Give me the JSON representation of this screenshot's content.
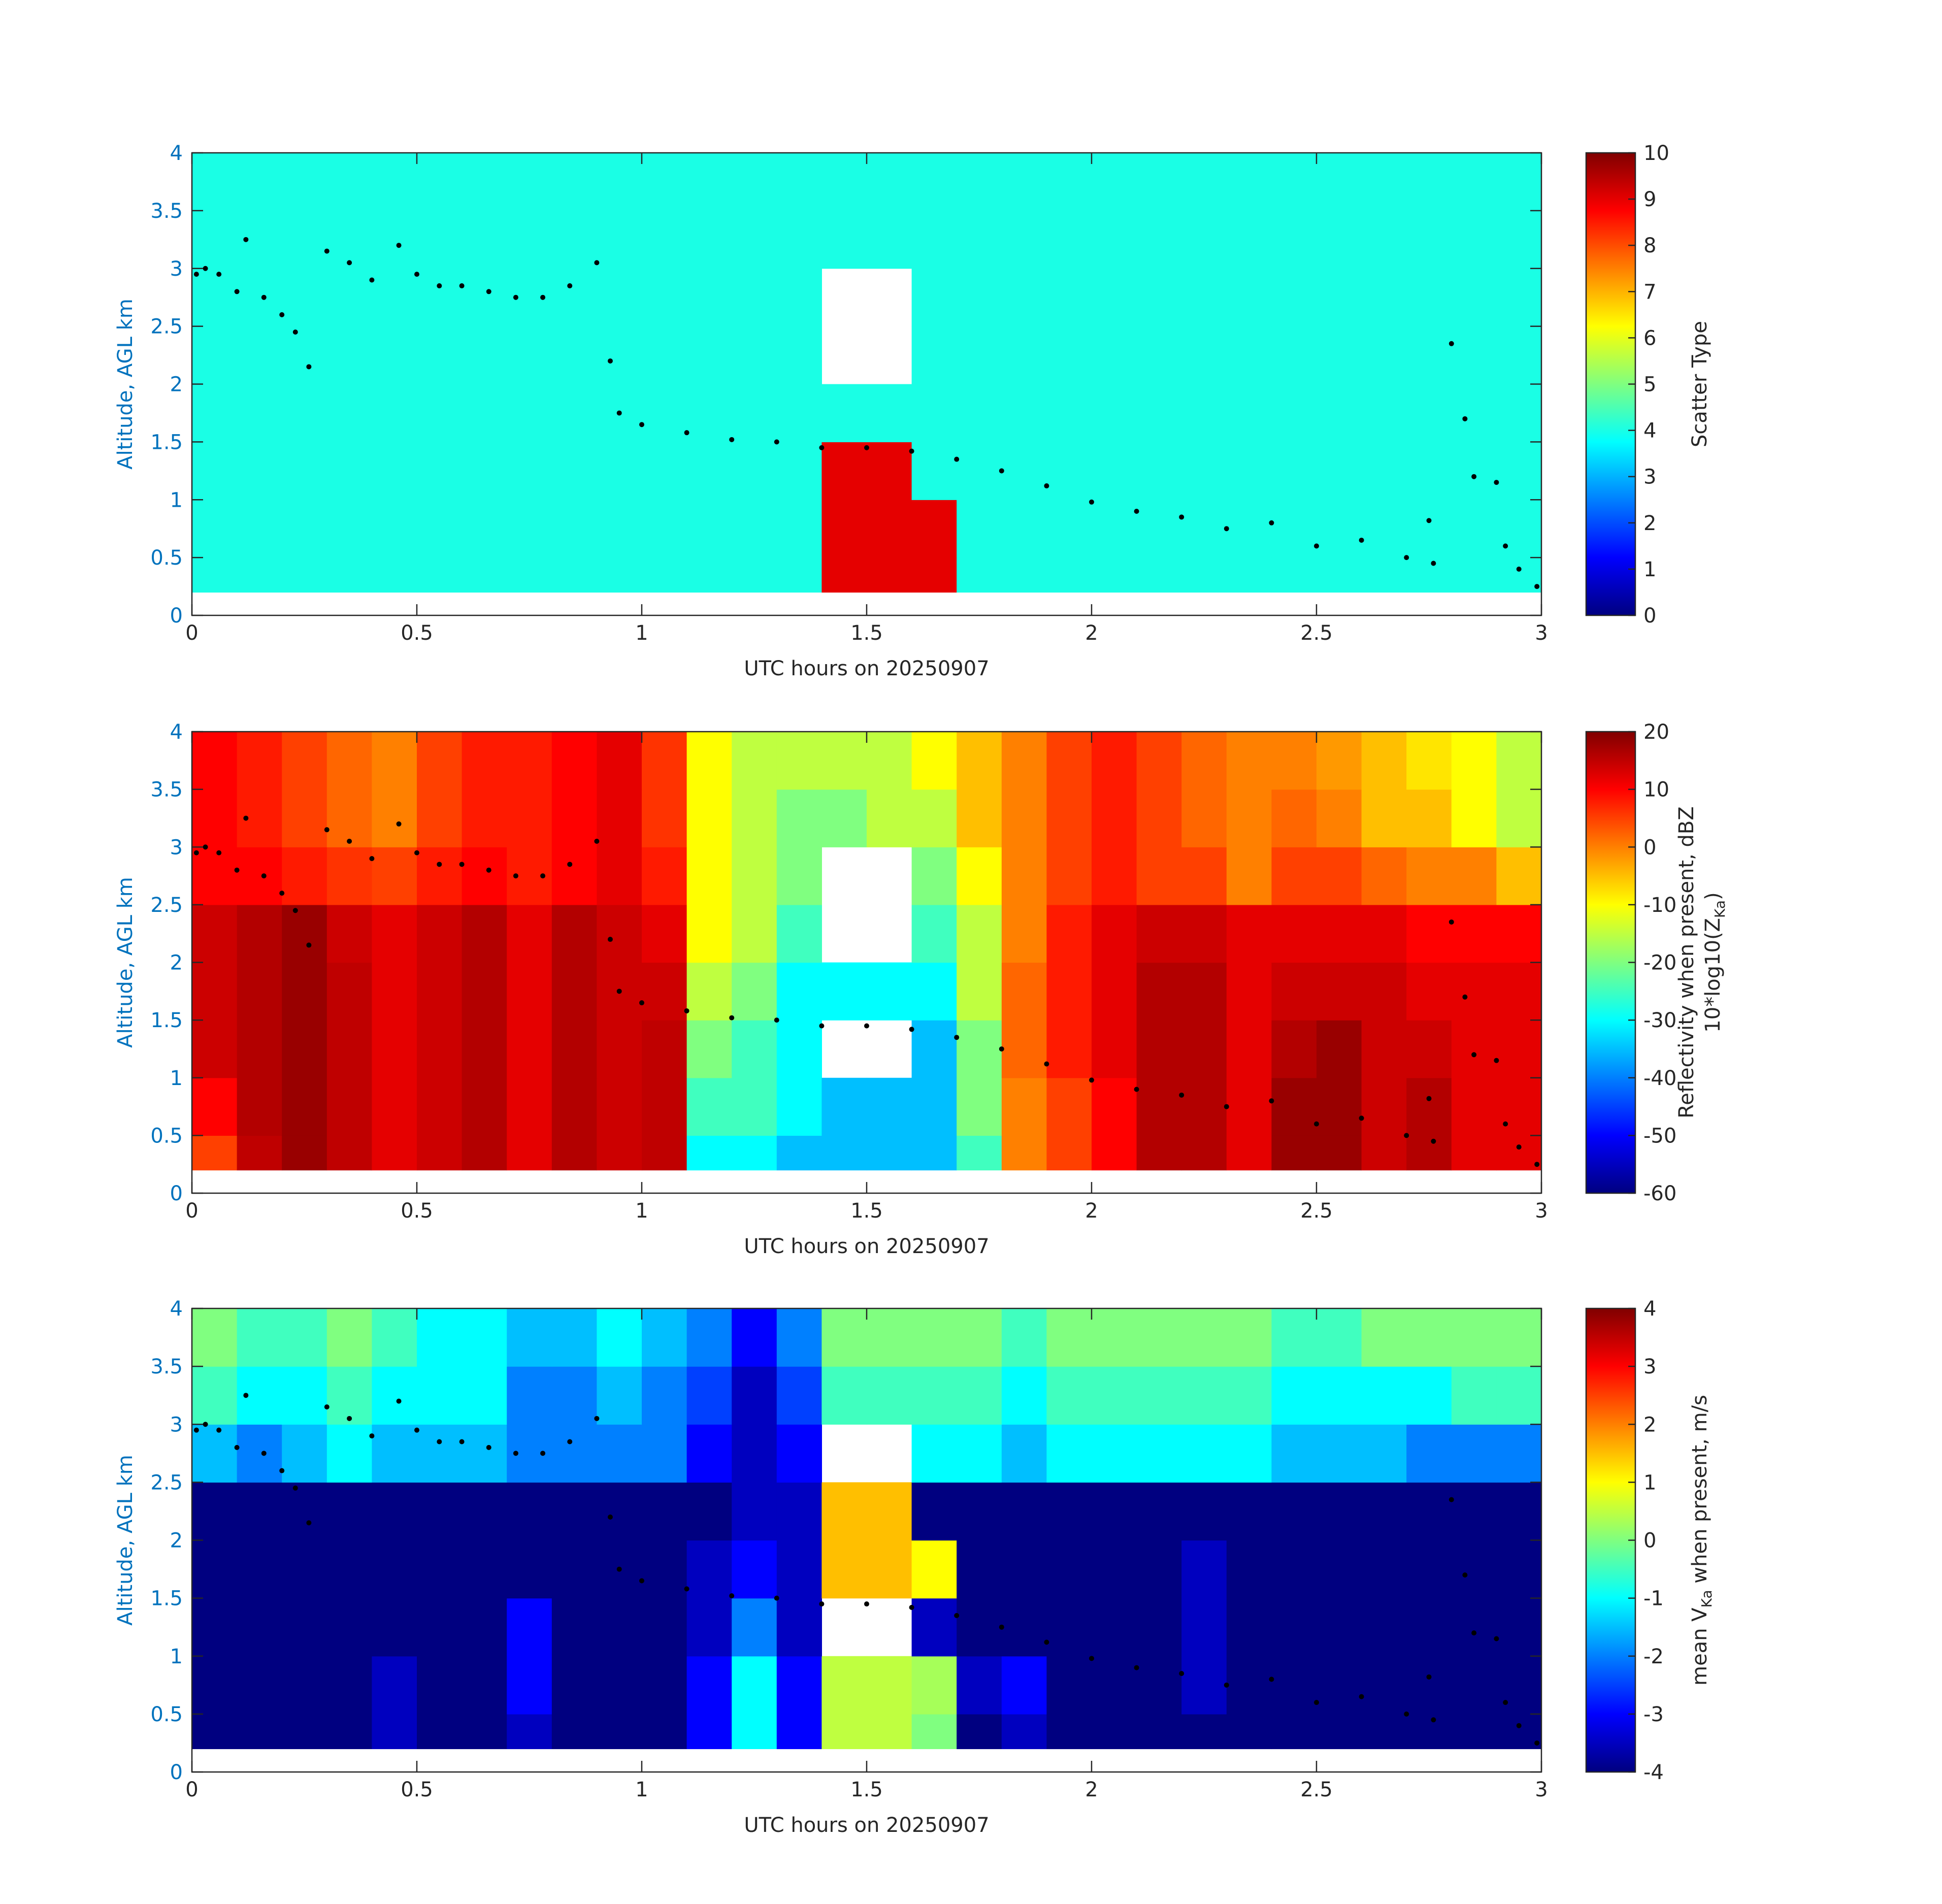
{
  "chart_data": [
    {
      "type": "heatmap",
      "xlabel": "UTC hours on 20250907",
      "ylabel": "Altitude, AGL km",
      "xlim": [
        0,
        3
      ],
      "ylim": [
        0,
        4
      ],
      "xticks": [
        0,
        0.5,
        1,
        1.5,
        2,
        2.5,
        3
      ],
      "yticks": [
        0,
        0.5,
        1,
        1.5,
        2,
        2.5,
        3,
        3.5,
        4
      ],
      "x_edges": [
        0,
        0.1,
        0.2,
        0.3,
        0.4,
        0.5,
        0.6,
        0.7,
        0.8,
        0.9,
        1,
        1.1,
        1.2,
        1.3,
        1.4,
        1.5,
        1.6,
        1.7,
        1.8,
        1.9,
        2,
        2.1,
        2.2,
        2.3,
        2.4,
        2.5,
        2.6,
        2.7,
        2.8,
        2.9,
        3
      ],
      "y_edges": [
        0.2,
        0.5,
        1,
        1.5,
        2,
        2.5,
        3,
        3.5,
        4
      ],
      "clim": [
        0,
        10
      ],
      "cticks": [
        0,
        1,
        2,
        3,
        4,
        5,
        6,
        7,
        8,
        9,
        10
      ],
      "colormap": "jet",
      "clabel": [
        "Scatter Type"
      ],
      "z": [
        [
          4,
          4,
          4,
          4,
          4,
          4,
          4,
          4,
          4,
          4,
          4,
          4,
          4,
          4,
          9,
          9,
          9,
          4,
          4,
          4,
          4,
          4,
          4,
          4,
          4,
          4,
          4,
          4,
          4,
          4
        ],
        [
          4,
          4,
          4,
          4,
          4,
          4,
          4,
          4,
          4,
          4,
          4,
          4,
          4,
          4,
          9,
          9,
          9,
          4,
          4,
          4,
          4,
          4,
          4,
          4,
          4,
          4,
          4,
          4,
          4,
          4
        ],
        [
          4,
          4,
          4,
          4,
          4,
          4,
          4,
          4,
          4,
          4,
          4,
          4,
          4,
          4,
          9,
          9,
          4,
          4,
          4,
          4,
          4,
          4,
          4,
          4,
          4,
          4,
          4,
          4,
          4,
          4
        ],
        [
          4,
          4,
          4,
          4,
          4,
          4,
          4,
          4,
          4,
          4,
          4,
          4,
          4,
          4,
          4,
          4,
          4,
          4,
          4,
          4,
          4,
          4,
          4,
          4,
          4,
          4,
          4,
          4,
          4,
          4
        ],
        [
          4,
          4,
          4,
          4,
          4,
          4,
          4,
          4,
          4,
          4,
          4,
          4,
          4,
          4,
          null,
          null,
          4,
          4,
          4,
          4,
          4,
          4,
          4,
          4,
          4,
          4,
          4,
          4,
          4,
          4
        ],
        [
          4,
          4,
          4,
          4,
          4,
          4,
          4,
          4,
          4,
          4,
          4,
          4,
          4,
          4,
          null,
          null,
          4,
          4,
          4,
          4,
          4,
          4,
          4,
          4,
          4,
          4,
          4,
          4,
          4,
          4
        ],
        [
          4,
          4,
          4,
          4,
          4,
          4,
          4,
          4,
          4,
          4,
          4,
          4,
          4,
          4,
          4,
          4,
          4,
          4,
          4,
          4,
          4,
          4,
          4,
          4,
          4,
          4,
          4,
          4,
          4,
          4
        ],
        [
          4,
          4,
          4,
          4,
          4,
          4,
          4,
          4,
          4,
          4,
          4,
          4,
          4,
          4,
          4,
          4,
          4,
          4,
          4,
          4,
          4,
          4,
          4,
          4,
          4,
          4,
          4,
          4,
          4,
          4
        ]
      ],
      "points": {
        "x": [
          0.01,
          0.03,
          0.06,
          0.1,
          0.12,
          0.16,
          0.2,
          0.23,
          0.26,
          0.3,
          0.35,
          0.4,
          0.46,
          0.5,
          0.55,
          0.6,
          0.66,
          0.72,
          0.78,
          0.84,
          0.9,
          0.93,
          0.95,
          1.0,
          1.1,
          1.2,
          1.3,
          1.4,
          1.5,
          1.6,
          1.7,
          1.8,
          1.9,
          2.0,
          2.1,
          2.2,
          2.3,
          2.4,
          2.5,
          2.6,
          2.7,
          2.75,
          2.76,
          2.8,
          2.83,
          2.85,
          2.9,
          2.92,
          2.95,
          2.99
        ],
        "y": [
          2.95,
          3.0,
          2.95,
          2.8,
          3.25,
          2.75,
          2.6,
          2.45,
          2.15,
          3.15,
          3.05,
          2.9,
          3.2,
          2.95,
          2.85,
          2.85,
          2.8,
          2.75,
          2.75,
          2.85,
          3.05,
          2.2,
          1.75,
          1.65,
          1.58,
          1.52,
          1.5,
          1.45,
          1.45,
          1.42,
          1.35,
          1.25,
          1.12,
          0.98,
          0.9,
          0.85,
          0.75,
          0.8,
          0.6,
          0.65,
          0.5,
          0.82,
          0.45,
          2.35,
          1.7,
          1.2,
          1.15,
          0.6,
          0.4,
          0.25
        ],
        "color": "#000000"
      }
    },
    {
      "type": "heatmap",
      "xlabel": "UTC hours on 20250907",
      "ylabel": "Altitude, AGL km",
      "xlim": [
        0,
        3
      ],
      "ylim": [
        0,
        4
      ],
      "xticks": [
        0,
        0.5,
        1,
        1.5,
        2,
        2.5,
        3
      ],
      "yticks": [
        0,
        0.5,
        1,
        1.5,
        2,
        2.5,
        3,
        3.5,
        4
      ],
      "x_edges": [
        0,
        0.1,
        0.2,
        0.3,
        0.4,
        0.5,
        0.6,
        0.7,
        0.8,
        0.9,
        1,
        1.1,
        1.2,
        1.3,
        1.4,
        1.5,
        1.6,
        1.7,
        1.8,
        1.9,
        2,
        2.1,
        2.2,
        2.3,
        2.4,
        2.5,
        2.6,
        2.7,
        2.8,
        2.9,
        3
      ],
      "y_edges": [
        0.2,
        0.5,
        1,
        1.5,
        2,
        2.5,
        3,
        3.5,
        4
      ],
      "clim": [
        -60,
        20
      ],
      "cticks": [
        -60,
        -50,
        -40,
        -30,
        -20,
        -10,
        0,
        10,
        20
      ],
      "colormap": "jet",
      "clabel": [
        "Reflectivity when present, dBZ",
        [
          "10*log10(Z",
          "Ka",
          ")"
        ]
      ],
      "z": [
        [
          5,
          15,
          18,
          15,
          12,
          14,
          16,
          12,
          16,
          14,
          15,
          -30,
          -30,
          -35,
          -35,
          -35,
          -35,
          -25,
          0,
          5,
          10,
          16,
          16,
          12,
          18,
          18,
          14,
          16,
          12,
          12
        ],
        [
          10,
          16,
          18,
          15,
          12,
          14,
          16,
          12,
          16,
          14,
          15,
          -25,
          -25,
          -30,
          -35,
          -35,
          -35,
          -20,
          0,
          5,
          10,
          16,
          16,
          12,
          18,
          18,
          14,
          16,
          12,
          12
        ],
        [
          14,
          16,
          18,
          15,
          12,
          14,
          16,
          12,
          16,
          14,
          15,
          -20,
          -25,
          -30,
          null,
          null,
          -35,
          -20,
          2,
          8,
          12,
          16,
          16,
          12,
          16,
          18,
          14,
          14,
          12,
          12
        ],
        [
          14,
          16,
          18,
          15,
          12,
          14,
          16,
          12,
          16,
          14,
          14,
          -15,
          -20,
          -30,
          -30,
          -30,
          -30,
          -15,
          2,
          8,
          12,
          16,
          16,
          12,
          14,
          14,
          14,
          12,
          12,
          12
        ],
        [
          14,
          16,
          18,
          14,
          12,
          14,
          16,
          12,
          16,
          14,
          12,
          -10,
          -15,
          -25,
          null,
          null,
          -25,
          -15,
          0,
          8,
          12,
          14,
          14,
          12,
          12,
          12,
          12,
          10,
          10,
          10
        ],
        [
          10,
          10,
          8,
          6,
          5,
          8,
          10,
          8,
          10,
          12,
          8,
          -10,
          -15,
          -20,
          null,
          null,
          -20,
          -10,
          0,
          5,
          8,
          5,
          5,
          0,
          5,
          5,
          2,
          0,
          0,
          -5
        ],
        [
          10,
          8,
          5,
          2,
          0,
          5,
          8,
          8,
          10,
          12,
          6,
          -10,
          -15,
          -20,
          -20,
          -15,
          -15,
          -5,
          0,
          5,
          8,
          5,
          2,
          0,
          2,
          0,
          -5,
          -5,
          -10,
          -15
        ],
        [
          10,
          8,
          5,
          2,
          0,
          5,
          8,
          8,
          10,
          12,
          6,
          -10,
          -15,
          -15,
          -15,
          -15,
          -10,
          -5,
          0,
          5,
          8,
          5,
          2,
          0,
          0,
          -2,
          -5,
          -8,
          -10,
          -15
        ]
      ],
      "points": {
        "x": [
          0.01,
          0.03,
          0.06,
          0.1,
          0.12,
          0.16,
          0.2,
          0.23,
          0.26,
          0.3,
          0.35,
          0.4,
          0.46,
          0.5,
          0.55,
          0.6,
          0.66,
          0.72,
          0.78,
          0.84,
          0.9,
          0.93,
          0.95,
          1.0,
          1.1,
          1.2,
          1.3,
          1.4,
          1.5,
          1.6,
          1.7,
          1.8,
          1.9,
          2.0,
          2.1,
          2.2,
          2.3,
          2.4,
          2.5,
          2.6,
          2.7,
          2.75,
          2.76,
          2.8,
          2.83,
          2.85,
          2.9,
          2.92,
          2.95,
          2.99
        ],
        "y": [
          2.95,
          3.0,
          2.95,
          2.8,
          3.25,
          2.75,
          2.6,
          2.45,
          2.15,
          3.15,
          3.05,
          2.9,
          3.2,
          2.95,
          2.85,
          2.85,
          2.8,
          2.75,
          2.75,
          2.85,
          3.05,
          2.2,
          1.75,
          1.65,
          1.58,
          1.52,
          1.5,
          1.45,
          1.45,
          1.42,
          1.35,
          1.25,
          1.12,
          0.98,
          0.9,
          0.85,
          0.75,
          0.8,
          0.6,
          0.65,
          0.5,
          0.82,
          0.45,
          2.35,
          1.7,
          1.2,
          1.15,
          0.6,
          0.4,
          0.25
        ],
        "color": "#000000"
      }
    },
    {
      "type": "heatmap",
      "xlabel": "UTC hours on 20250907",
      "ylabel": "Altitude, AGL km",
      "xlim": [
        0,
        3
      ],
      "ylim": [
        0,
        4
      ],
      "xticks": [
        0,
        0.5,
        1,
        1.5,
        2,
        2.5,
        3
      ],
      "yticks": [
        0,
        0.5,
        1,
        1.5,
        2,
        2.5,
        3,
        3.5,
        4
      ],
      "x_edges": [
        0,
        0.1,
        0.2,
        0.3,
        0.4,
        0.5,
        0.6,
        0.7,
        0.8,
        0.9,
        1,
        1.1,
        1.2,
        1.3,
        1.4,
        1.5,
        1.6,
        1.7,
        1.8,
        1.9,
        2,
        2.1,
        2.2,
        2.3,
        2.4,
        2.5,
        2.6,
        2.7,
        2.8,
        2.9,
        3
      ],
      "y_edges": [
        0.2,
        0.5,
        1,
        1.5,
        2,
        2.5,
        3,
        3.5,
        4
      ],
      "clim": [
        -4,
        4
      ],
      "cticks": [
        -4,
        -3,
        -2,
        -1,
        0,
        1,
        2,
        3,
        4
      ],
      "colormap": "jet",
      "clabel": [
        [
          "mean V",
          "Ka",
          " when present, m/s"
        ]
      ],
      "z": [
        [
          -4,
          -4,
          -4,
          -4,
          -3.5,
          -4,
          -4,
          -3.5,
          -4,
          -4,
          -4,
          -3,
          -1,
          -3,
          0.5,
          0.5,
          0,
          -4,
          -3.5,
          -4,
          -4,
          -4,
          -4,
          -4,
          -4,
          -4,
          -4,
          -4,
          -4,
          -4
        ],
        [
          -4,
          -4,
          -4,
          -4,
          -3.5,
          -4,
          -4,
          -3,
          -4,
          -4,
          -4,
          -3,
          -1,
          -3,
          0.5,
          0.5,
          0.3,
          -3.5,
          -3,
          -4,
          -4,
          -4,
          -3.5,
          -4,
          -4,
          -4,
          -4,
          -4,
          -4,
          -4
        ],
        [
          -4,
          -4,
          -4,
          -4,
          -4,
          -4,
          -4,
          -3,
          -4,
          -4,
          -4,
          -3.5,
          -2,
          -3.5,
          null,
          null,
          -3.5,
          -4,
          -4,
          -4,
          -4,
          -4,
          -3.5,
          -4,
          -4,
          -4,
          -4,
          -4,
          -4,
          -4
        ],
        [
          -4,
          -4,
          -4,
          -4,
          -4,
          -4,
          -4,
          -4,
          -4,
          -4,
          -4,
          -3.5,
          -3,
          -3.5,
          1.5,
          1.5,
          1,
          -4,
          -4,
          -4,
          -4,
          -4,
          -3.5,
          -4,
          -4,
          -4,
          -4,
          -4,
          -4,
          -4
        ],
        [
          -4,
          -4,
          -4,
          -4,
          -4,
          -4,
          -4,
          -4,
          -4,
          -4,
          -4,
          -4,
          -3.5,
          -3.5,
          1.5,
          1.5,
          -4,
          -4,
          -4,
          -4,
          -4,
          -4,
          -4,
          -4,
          -4,
          -4,
          -4,
          -4,
          -4,
          -4
        ],
        [
          -1.5,
          -2,
          -1.5,
          -1,
          -1.5,
          -1.5,
          -1.5,
          -2,
          -2,
          -2,
          -2,
          -3,
          -3.5,
          -3,
          null,
          null,
          -1,
          -1,
          -1.5,
          -1,
          -1,
          -1,
          -1,
          -1,
          -1.5,
          -1.5,
          -1.5,
          -2,
          -2,
          -2
        ],
        [
          -0.5,
          -1,
          -1,
          -0.5,
          -1,
          -1,
          -1,
          -2,
          -2,
          -1.5,
          -2,
          -2.5,
          -3.5,
          -2.5,
          -0.5,
          -0.5,
          -0.5,
          -0.5,
          -1,
          -0.5,
          -0.5,
          -0.5,
          -0.5,
          -0.5,
          -1,
          -1,
          -1,
          -1,
          -0.5,
          -0.5
        ],
        [
          0,
          -0.5,
          -0.5,
          0,
          -0.5,
          -1,
          -1,
          -1.5,
          -1.5,
          -1,
          -1.5,
          -2,
          -3,
          -2,
          0,
          0,
          0,
          0,
          -0.5,
          0,
          0,
          0,
          0,
          0,
          -0.5,
          -0.5,
          0,
          0,
          0,
          0
        ]
      ],
      "points": {
        "x": [
          0.01,
          0.03,
          0.06,
          0.1,
          0.12,
          0.16,
          0.2,
          0.23,
          0.26,
          0.3,
          0.35,
          0.4,
          0.46,
          0.5,
          0.55,
          0.6,
          0.66,
          0.72,
          0.78,
          0.84,
          0.9,
          0.93,
          0.95,
          1.0,
          1.1,
          1.2,
          1.3,
          1.4,
          1.5,
          1.6,
          1.7,
          1.8,
          1.9,
          2.0,
          2.1,
          2.2,
          2.3,
          2.4,
          2.5,
          2.6,
          2.7,
          2.75,
          2.76,
          2.8,
          2.83,
          2.85,
          2.9,
          2.92,
          2.95,
          2.99
        ],
        "y": [
          2.95,
          3.0,
          2.95,
          2.8,
          3.25,
          2.75,
          2.6,
          2.45,
          2.15,
          3.15,
          3.05,
          2.9,
          3.2,
          2.95,
          2.85,
          2.85,
          2.8,
          2.75,
          2.75,
          2.85,
          3.05,
          2.2,
          1.75,
          1.65,
          1.58,
          1.52,
          1.5,
          1.45,
          1.45,
          1.42,
          1.35,
          1.25,
          1.12,
          0.98,
          0.9,
          0.85,
          0.75,
          0.8,
          0.6,
          0.65,
          0.5,
          0.82,
          0.45,
          2.35,
          1.7,
          1.2,
          1.15,
          0.6,
          0.4,
          0.25
        ],
        "color": "#000000"
      }
    }
  ]
}
